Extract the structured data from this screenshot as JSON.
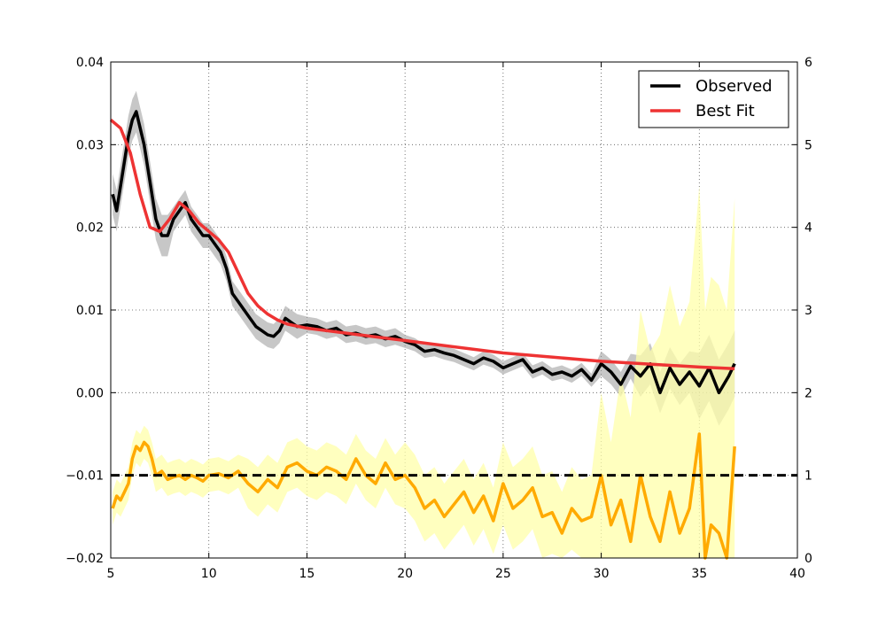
{
  "chart_data": {
    "type": "line",
    "title": "",
    "xlabel": "",
    "ylabel": "",
    "y2label": "",
    "xlim": [
      5,
      40
    ],
    "ylim": [
      -0.02,
      0.04
    ],
    "y2lim": [
      0,
      6
    ],
    "x_ticks": [
      "5",
      "10",
      "15",
      "20",
      "25",
      "30",
      "35",
      "40"
    ],
    "y_ticks": [
      "−0.02",
      "−0.01",
      "0.00",
      "0.01",
      "0.02",
      "0.03",
      "0.04"
    ],
    "y2_ticks": [
      "0",
      "1",
      "2",
      "3",
      "4",
      "5",
      "6"
    ],
    "grid": true,
    "legend_position": "top-right",
    "reference_line": {
      "axis": "right",
      "value": 1,
      "style": "dashed",
      "color": "#000000"
    },
    "series": [
      {
        "name": "Observed",
        "axis": "left",
        "color": "#000000",
        "x": [
          5.1,
          5.3,
          5.5,
          5.7,
          5.9,
          6.1,
          6.3,
          6.5,
          6.7,
          6.9,
          7.1,
          7.3,
          7.6,
          7.9,
          8.2,
          8.5,
          8.8,
          9.1,
          9.4,
          9.7,
          10,
          10.3,
          10.6,
          10.9,
          11.2,
          11.5,
          11.8,
          12.1,
          12.4,
          12.7,
          13,
          13.3,
          13.6,
          13.9,
          14.2,
          14.5,
          15,
          15.5,
          16,
          16.5,
          17,
          17.5,
          18,
          18.5,
          19,
          19.5,
          20,
          20.5,
          21,
          21.5,
          22,
          22.5,
          23,
          23.5,
          24,
          24.5,
          25,
          25.5,
          26,
          26.5,
          27,
          27.5,
          28,
          28.5,
          29,
          29.5,
          30,
          30.5,
          31,
          31.5,
          32,
          32.5,
          33,
          33.5,
          34,
          34.5,
          35,
          35.5,
          36,
          36.5,
          36.8
        ],
        "values": [
          0.024,
          0.022,
          0.025,
          0.028,
          0.031,
          0.033,
          0.034,
          0.032,
          0.03,
          0.027,
          0.024,
          0.021,
          0.019,
          0.019,
          0.021,
          0.022,
          0.023,
          0.021,
          0.02,
          0.019,
          0.019,
          0.018,
          0.017,
          0.015,
          0.012,
          0.011,
          0.01,
          0.009,
          0.008,
          0.0075,
          0.007,
          0.0068,
          0.0075,
          0.009,
          0.0085,
          0.008,
          0.0082,
          0.008,
          0.0075,
          0.0078,
          0.007,
          0.0072,
          0.0068,
          0.007,
          0.0065,
          0.0068,
          0.0062,
          0.0058,
          0.005,
          0.0052,
          0.0048,
          0.0045,
          0.004,
          0.0035,
          0.0042,
          0.0038,
          0.003,
          0.0035,
          0.004,
          0.0025,
          0.003,
          0.0022,
          0.0025,
          0.002,
          0.0028,
          0.0015,
          0.0035,
          0.0025,
          0.001,
          0.0032,
          0.002,
          0.0035,
          0.0,
          0.003,
          0.001,
          0.0025,
          0.0008,
          0.003,
          0.0,
          0.002,
          0.0035
        ],
        "uncertainty": [
          0.0025,
          0.0025,
          0.0025,
          0.0025,
          0.0025,
          0.0025,
          0.0025,
          0.0025,
          0.0025,
          0.0025,
          0.0025,
          0.0025,
          0.0025,
          0.0025,
          0.0015,
          0.0015,
          0.0015,
          0.0015,
          0.0015,
          0.0015,
          0.0015,
          0.0015,
          0.0015,
          0.0015,
          0.0015,
          0.0015,
          0.0015,
          0.0015,
          0.0015,
          0.0015,
          0.0015,
          0.0015,
          0.0015,
          0.0015,
          0.0015,
          0.0015,
          0.001,
          0.001,
          0.001,
          0.001,
          0.001,
          0.001,
          0.001,
          0.001,
          0.001,
          0.001,
          0.0008,
          0.0008,
          0.0008,
          0.0008,
          0.0008,
          0.0008,
          0.0008,
          0.0008,
          0.0008,
          0.0008,
          0.0008,
          0.0008,
          0.0008,
          0.0008,
          0.0008,
          0.0008,
          0.0008,
          0.0008,
          0.0008,
          0.0008,
          0.0015,
          0.0015,
          0.0015,
          0.0015,
          0.0025,
          0.0025,
          0.0025,
          0.0025,
          0.0025,
          0.0025,
          0.004,
          0.004,
          0.004,
          0.004,
          0.004
        ]
      },
      {
        "name": "Best Fit",
        "axis": "left",
        "color": "#ee3333",
        "x": [
          5,
          5.5,
          6,
          6.5,
          7,
          7.5,
          8,
          8.5,
          9,
          9.5,
          10,
          10.5,
          11,
          11.5,
          12,
          12.5,
          13,
          13.5,
          14,
          15,
          17,
          20,
          25,
          30,
          35,
          36.8
        ],
        "values": [
          0.033,
          0.032,
          0.029,
          0.024,
          0.02,
          0.0195,
          0.021,
          0.023,
          0.022,
          0.0205,
          0.0195,
          0.0185,
          0.017,
          0.0145,
          0.012,
          0.0105,
          0.0095,
          0.0088,
          0.0083,
          0.0078,
          0.0072,
          0.0063,
          0.0048,
          0.0038,
          0.0031,
          0.0029
        ]
      },
      {
        "name": "",
        "axis": "right",
        "color": "#ffaa00",
        "band_color": "#ffffaa",
        "x": [
          5.1,
          5.3,
          5.5,
          5.7,
          5.9,
          6.1,
          6.3,
          6.5,
          6.7,
          6.9,
          7.1,
          7.3,
          7.6,
          7.9,
          8.2,
          8.5,
          8.8,
          9.1,
          9.4,
          9.7,
          10,
          10.5,
          11,
          11.5,
          12,
          12.5,
          13,
          13.5,
          14,
          14.5,
          15,
          15.5,
          16,
          16.5,
          17,
          17.5,
          18,
          18.5,
          19,
          19.5,
          20,
          20.5,
          21,
          21.5,
          22,
          22.5,
          23,
          23.5,
          24,
          24.5,
          25,
          25.5,
          26,
          26.5,
          27,
          27.5,
          28,
          28.5,
          29,
          29.5,
          30,
          30.5,
          31,
          31.5,
          32,
          32.5,
          33,
          33.5,
          34,
          34.5,
          35,
          35.3,
          35.6,
          36,
          36.4,
          36.8
        ],
        "values": [
          0.6,
          0.75,
          0.7,
          0.8,
          0.9,
          1.2,
          1.35,
          1.3,
          1.4,
          1.35,
          1.2,
          1.0,
          1.05,
          0.95,
          0.98,
          1.0,
          0.95,
          1.0,
          0.97,
          0.93,
          1.0,
          1.02,
          0.97,
          1.05,
          0.9,
          0.8,
          0.95,
          0.85,
          1.1,
          1.15,
          1.05,
          1.0,
          1.1,
          1.05,
          0.95,
          1.2,
          1.0,
          0.9,
          1.15,
          0.95,
          1.0,
          0.85,
          0.6,
          0.7,
          0.5,
          0.65,
          0.8,
          0.55,
          0.75,
          0.45,
          0.9,
          0.6,
          0.7,
          0.85,
          0.5,
          0.55,
          0.3,
          0.6,
          0.45,
          0.5,
          1.0,
          0.4,
          0.7,
          0.2,
          1.0,
          0.5,
          0.2,
          0.8,
          0.3,
          0.6,
          1.5,
          0.0,
          0.4,
          0.3,
          0.0,
          1.35
        ],
        "uncertainty": [
          0.2,
          0.2,
          0.2,
          0.2,
          0.2,
          0.2,
          0.2,
          0.2,
          0.2,
          0.2,
          0.2,
          0.2,
          0.2,
          0.2,
          0.2,
          0.2,
          0.2,
          0.2,
          0.2,
          0.2,
          0.2,
          0.2,
          0.2,
          0.2,
          0.3,
          0.3,
          0.3,
          0.3,
          0.3,
          0.3,
          0.3,
          0.3,
          0.3,
          0.3,
          0.3,
          0.3,
          0.3,
          0.3,
          0.3,
          0.3,
          0.4,
          0.4,
          0.4,
          0.4,
          0.4,
          0.4,
          0.4,
          0.4,
          0.4,
          0.4,
          0.5,
          0.5,
          0.5,
          0.5,
          0.5,
          0.5,
          0.5,
          0.5,
          0.5,
          0.5,
          1.0,
          1.0,
          1.5,
          1.5,
          2.0,
          2.0,
          2.5,
          2.5,
          2.5,
          2.5,
          3.0,
          3.0,
          3.0,
          3.0,
          3.0,
          3.0
        ]
      }
    ]
  }
}
